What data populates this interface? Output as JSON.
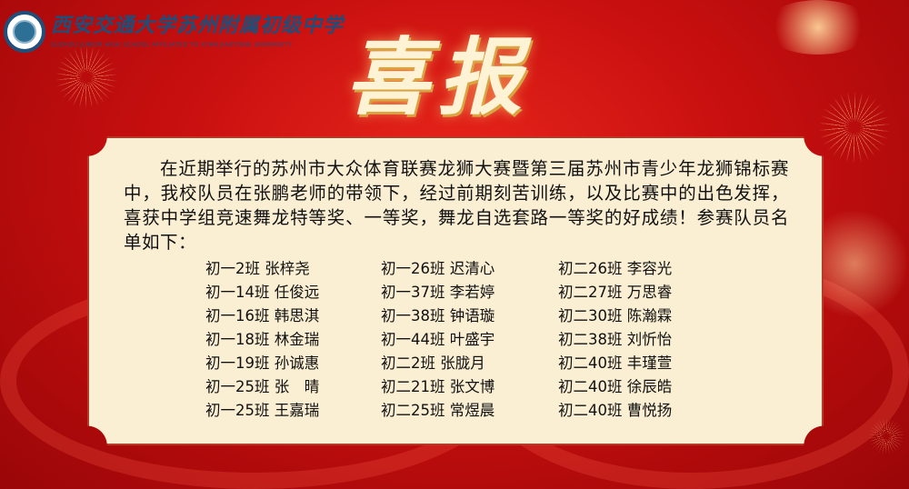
{
  "header": {
    "school_name_cn": "西安交通大学苏州附属初级中学",
    "school_name_en": "SUZHOU JUNIOR HIGH SCHOOL AFFILIATED TO XI'AN JIAOTONG UNIVERSITY",
    "logo_icon": "school-emblem-icon"
  },
  "headline": "喜报",
  "announcement": "在近期举行的苏州市大众体育联赛龙狮大赛暨第三届苏州市青少年龙狮锦标赛中，我校队员在张鹏老师的带领下，经过前期刻苦训练，以及比赛中的出色发挥，喜获中学组竞速舞龙特等奖、一等奖，舞龙自选套路一等奖的好成绩！参赛队员名单如下：",
  "roster": [
    "初一2班 张梓尧",
    "初一26班 迟清心",
    "初二26班 李容光",
    "初一14班 任俊远",
    "初一37班 李若婷",
    "初二27班 万思睿",
    "初一16班 韩思淇",
    "初一38班 钟语璇",
    "初二30班 陈瀚霖",
    "初一18班 林金瑞",
    "初一44班 叶盛宇",
    "初二38班 刘忻怡",
    "初一19班 孙诚惠",
    "初二2班 张胧月",
    "初二40班 丰瑾萱",
    "初一25班 张　晴",
    "初二21班 张文博",
    "初二40班 徐辰皓",
    "初一25班 王嘉瑞",
    "初二25班 常煜晨",
    "初二40班 曹悦扬"
  ],
  "colors": {
    "background": "#c80f0f",
    "panel": "#fbefd3",
    "school_text": "#1d4f7a",
    "headline": "#fff3d6"
  }
}
